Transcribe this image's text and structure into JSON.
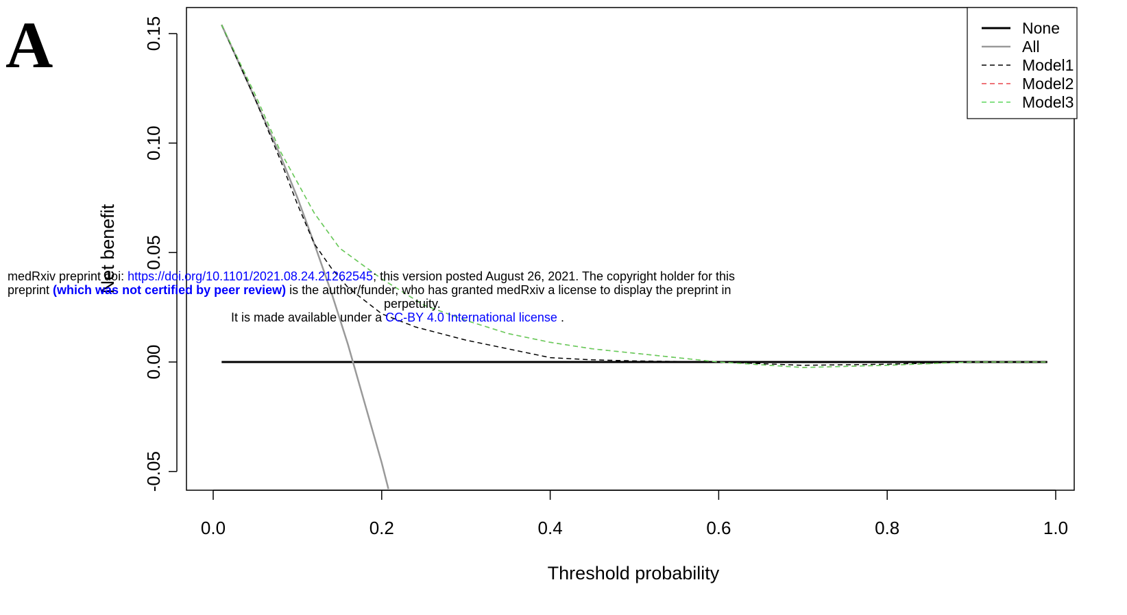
{
  "panel_label": "A",
  "notice": {
    "line1_prefix": "medRxiv preprint doi: ",
    "doi_link": "https://doi.org/10.1101/2021.08.24.21262545",
    "line1_suffix": "; this version posted August 26, 2021. The copyright holder for this",
    "line2_prefix": "preprint  ",
    "peer_review": "(which was not certified by peer review)",
    "line2_suffix": " is the author/funder, who has granted medRxiv a license to display the preprint in",
    "line3": "perpetuity.",
    "line4_prefix": "It is made available under a ",
    "license_link": "CC-BY 4.0 International license",
    "line4_suffix": " ."
  },
  "chart_data": {
    "type": "line",
    "xlabel": "Threshold probability",
    "ylabel": "Net benefit",
    "xlim": [
      0.0,
      1.0
    ],
    "ylim": [
      -0.05,
      0.15
    ],
    "x_ticks": [
      "0.0",
      "0.2",
      "0.4",
      "0.6",
      "0.8",
      "1.0"
    ],
    "y_ticks": [
      "-0.05",
      "0.00",
      "0.05",
      "0.10",
      "0.15"
    ],
    "legend_position": "top-right",
    "series": [
      {
        "name": "None",
        "color": "#000000",
        "style": "solid",
        "width": 3,
        "x": [
          0.01,
          0.99
        ],
        "y": [
          0.0,
          0.0
        ]
      },
      {
        "name": "All",
        "color": "#999999",
        "style": "solid",
        "width": 2.5,
        "x": [
          0.01,
          0.05,
          0.08,
          0.1,
          0.12,
          0.14,
          0.16,
          0.18,
          0.2,
          0.208
        ],
        "y": [
          0.154,
          0.12,
          0.094,
          0.075,
          0.054,
          0.032,
          0.008,
          -0.019,
          -0.046,
          -0.058
        ]
      },
      {
        "name": "Model1",
        "color": "#000000",
        "style": "dashed",
        "width": 1.5,
        "x": [
          0.01,
          0.05,
          0.08,
          0.1,
          0.12,
          0.14,
          0.16,
          0.2,
          0.24,
          0.3,
          0.35,
          0.4,
          0.45,
          0.5,
          0.6,
          0.7,
          0.8,
          0.9,
          0.99
        ],
        "y": [
          0.154,
          0.12,
          0.092,
          0.072,
          0.054,
          0.043,
          0.034,
          0.022,
          0.016,
          0.01,
          0.006,
          0.002,
          0.001,
          0.0005,
          0.0,
          -0.0015,
          -0.001,
          0.0,
          0.0
        ]
      },
      {
        "name": "Model2",
        "color": "#e8454a",
        "style": "dashed",
        "width": 1.5,
        "x": [
          0.01,
          0.05,
          0.08,
          0.1,
          0.12,
          0.15,
          0.2,
          0.25,
          0.3,
          0.35,
          0.4,
          0.45,
          0.5,
          0.55,
          0.6,
          0.7,
          0.8,
          0.9,
          0.99
        ],
        "y": [
          0.154,
          0.122,
          0.096,
          0.082,
          0.068,
          0.052,
          0.038,
          0.026,
          0.019,
          0.013,
          0.009,
          0.006,
          0.004,
          0.002,
          0.0,
          -0.0025,
          -0.0015,
          0.0,
          0.0
        ]
      },
      {
        "name": "Model3",
        "color": "#5cd65c",
        "style": "dashed",
        "width": 1.5,
        "x": [
          0.01,
          0.05,
          0.08,
          0.1,
          0.12,
          0.15,
          0.2,
          0.25,
          0.3,
          0.35,
          0.4,
          0.45,
          0.5,
          0.55,
          0.6,
          0.7,
          0.8,
          0.9,
          0.99
        ],
        "y": [
          0.154,
          0.122,
          0.096,
          0.082,
          0.068,
          0.052,
          0.038,
          0.026,
          0.019,
          0.013,
          0.009,
          0.006,
          0.004,
          0.002,
          0.0,
          -0.0025,
          -0.0015,
          0.0,
          0.0
        ]
      }
    ]
  }
}
